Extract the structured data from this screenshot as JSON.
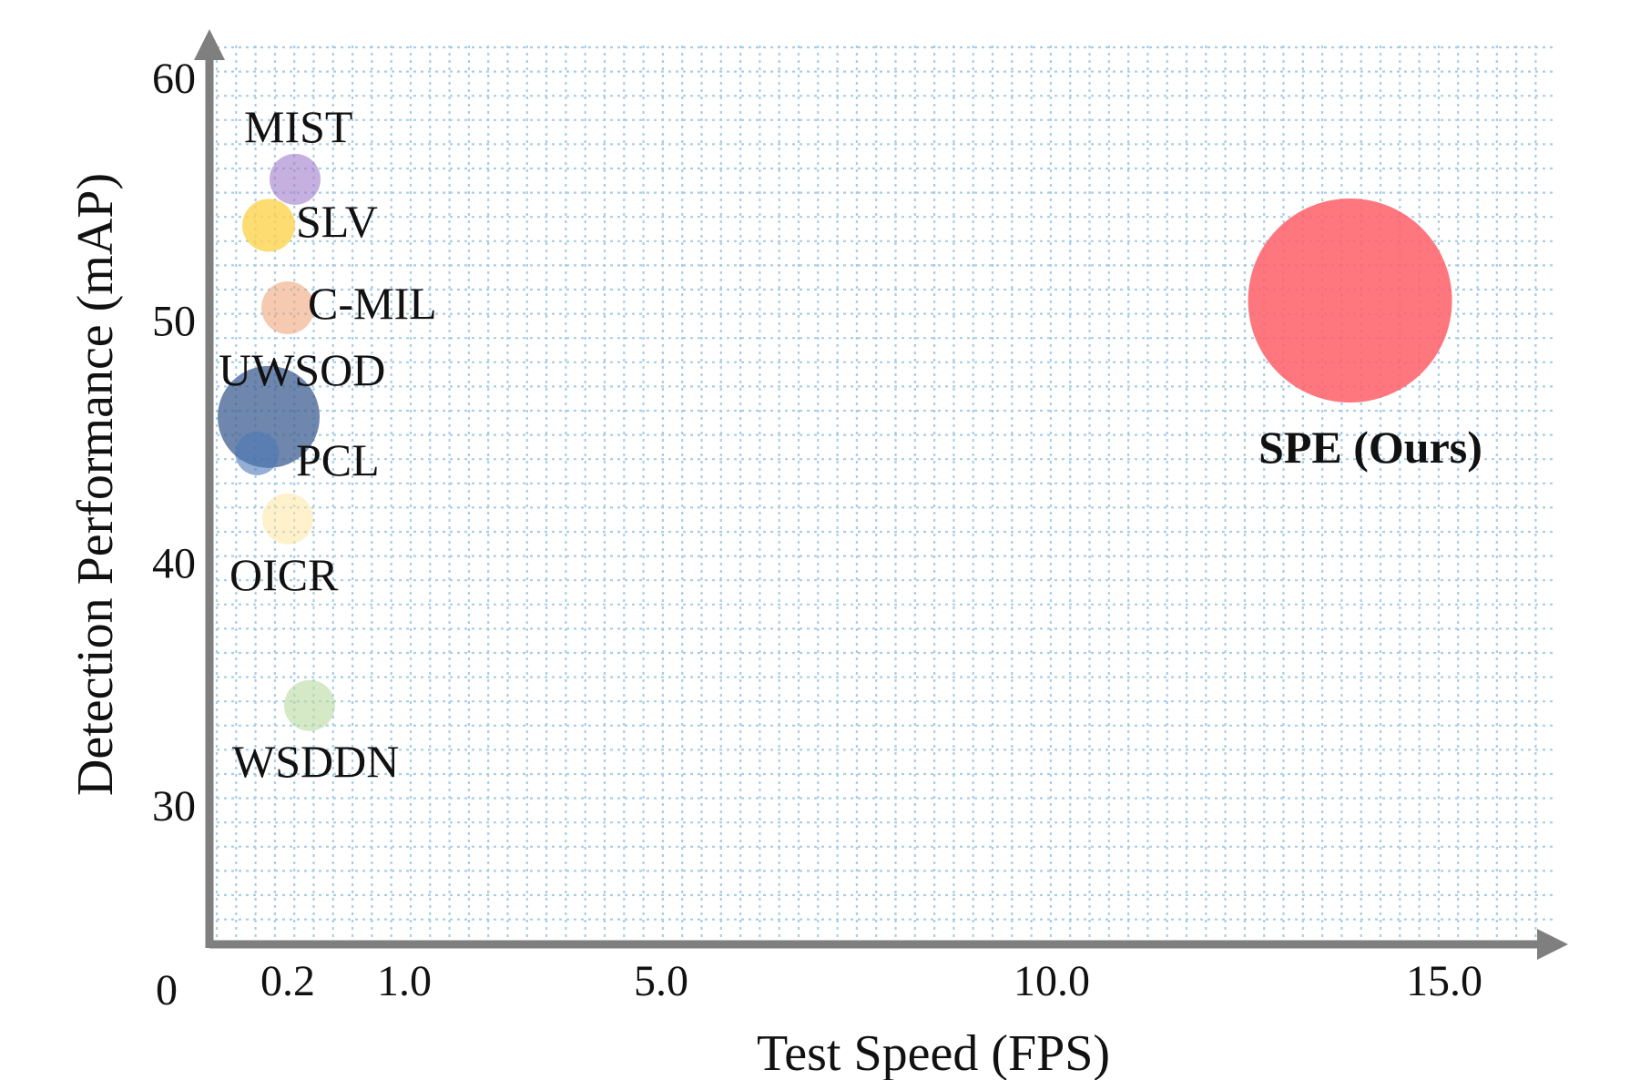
{
  "chart_data": {
    "type": "scatter",
    "title": "",
    "xlabel": "Test Speed (FPS)",
    "ylabel": "Detection Performance (mAP)",
    "x_ticks": [
      "0",
      "0.2",
      "1.0",
      "5.0",
      "10.0",
      "15.0"
    ],
    "y_ticks": [
      "30",
      "40",
      "50",
      "60"
    ],
    "ylim": [
      24,
      62
    ],
    "grid": true,
    "grid_color": "#a9cde6",
    "axis_color": "#7f7f7f",
    "points": [
      {
        "label": "MIST",
        "x": 0.25,
        "y": 55.8,
        "color": "#a07cc9",
        "bold": false
      },
      {
        "label": "SLV",
        "x": 0.15,
        "y": 53.9,
        "color": "#fdd34d",
        "bold": false
      },
      {
        "label": "C-MIL",
        "x": 0.2,
        "y": 50.5,
        "color": "#eea77c",
        "bold": false
      },
      {
        "label": "UWSOD",
        "x": 0.15,
        "y": 46.0,
        "color": "#3f5e91",
        "bold": false
      },
      {
        "label": "PCL",
        "x": 0.12,
        "y": 44.5,
        "color": "#4d79b6",
        "bold": false
      },
      {
        "label": "OICR",
        "x": 0.2,
        "y": 41.8,
        "color": "#fde5a0",
        "bold": false
      },
      {
        "label": "WSDDN",
        "x": 0.35,
        "y": 34.1,
        "color": "#b9dba1",
        "bold": false
      },
      {
        "label": "SPE (Ours)",
        "x": 13.8,
        "y": 50.8,
        "color": "#ff5f67",
        "bold": true
      }
    ]
  }
}
